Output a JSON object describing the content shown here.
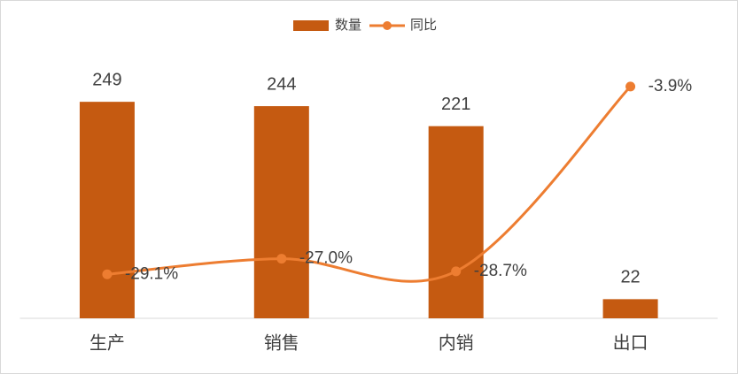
{
  "chart_data": {
    "type": "bar_line",
    "categories": [
      "生产",
      "销售",
      "内销",
      "出口"
    ],
    "series": [
      {
        "name": "数量",
        "type": "bar",
        "color": "#c55a11",
        "values": [
          249,
          244,
          221,
          22
        ]
      },
      {
        "name": "同比",
        "type": "line",
        "axis": "y2",
        "color": "#ed7d31",
        "values": [
          -29.1,
          -27.0,
          -28.7,
          -3.9
        ],
        "value_labels": [
          "-29.1%",
          "-27.0%",
          "-28.7%",
          "-3.9%"
        ]
      }
    ],
    "ylim": [
      0,
      300
    ],
    "y2lim": [
      -35,
      0
    ],
    "legend": "top"
  }
}
